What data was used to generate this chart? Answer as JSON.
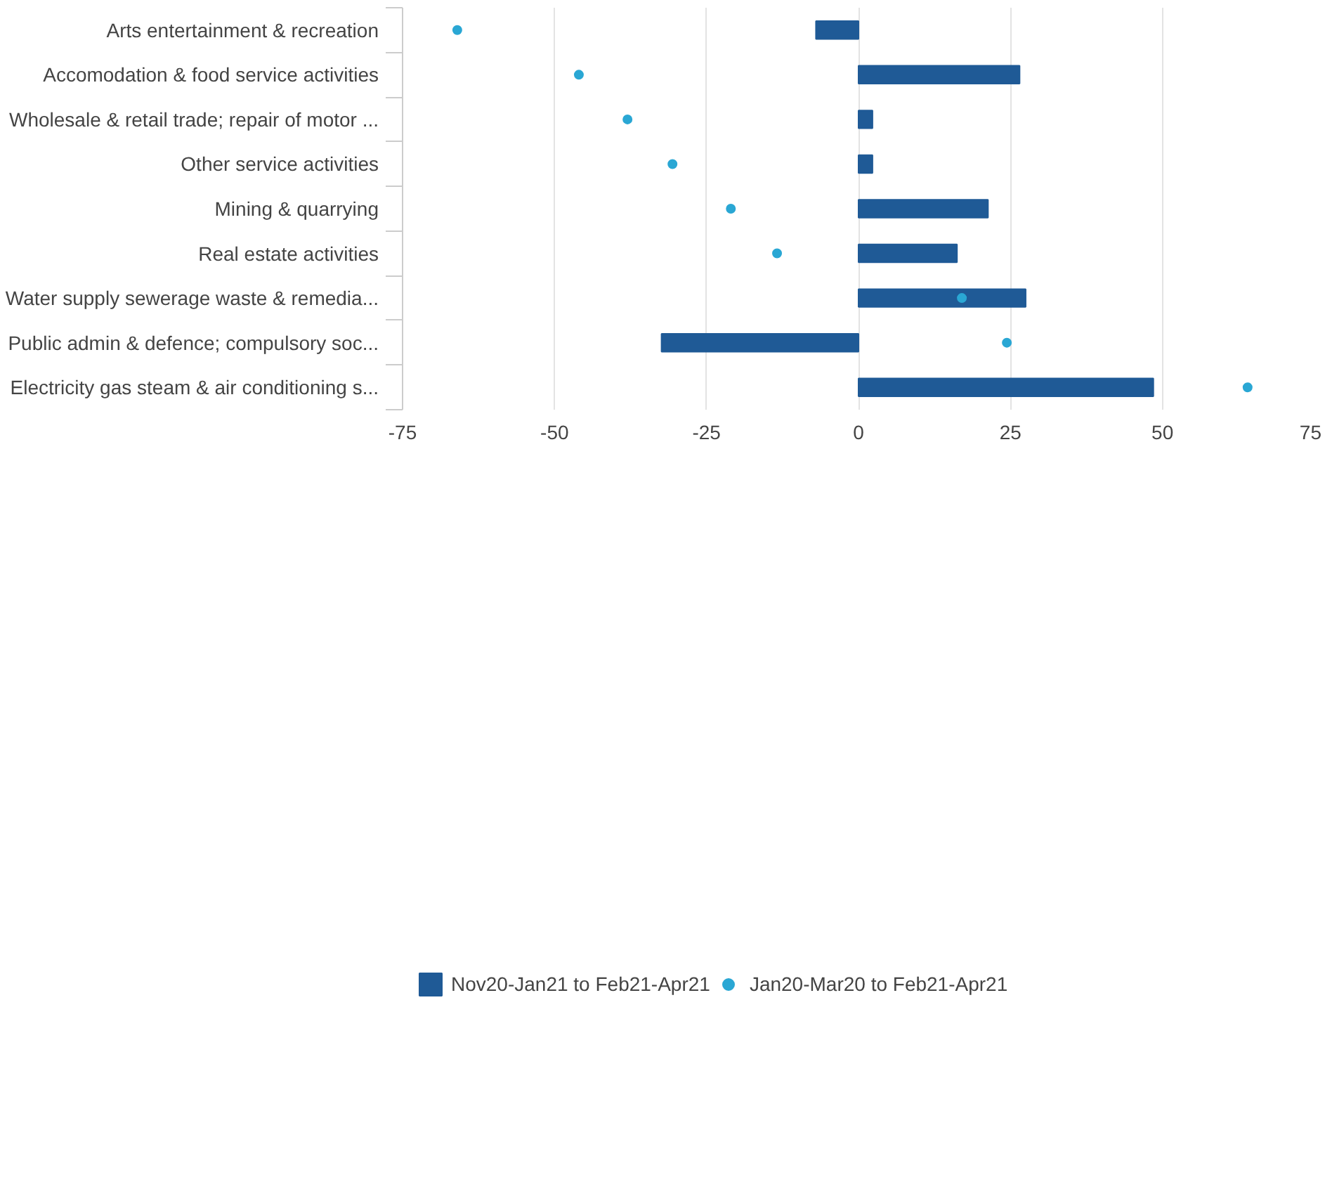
{
  "chart_data": {
    "type": "bar",
    "orientation": "horizontal",
    "categories": [
      "Arts entertainment & recreation",
      "Accomodation & food service activities",
      "Wholesale & retail trade; repair of motor ...",
      "Other service activities",
      "Mining & quarrying",
      "Real estate activities",
      "Water supply sewerage waste & remedia...",
      "Public admin & defence; compulsory soc...",
      "Electricity gas steam & air conditioning s..."
    ],
    "series": [
      {
        "name": "Nov20-Jan21 to Feb21-Apr21",
        "color": "#1f5a96",
        "values": [
          -7,
          26.5,
          2.3,
          2.3,
          21.3,
          16.2,
          27.5,
          -32.4,
          48.5
        ]
      },
      {
        "name": "Jan20-Mar20 to Feb21-Apr21",
        "type": "scatter",
        "color": "#2aa7d4",
        "values": [
          -66,
          -46,
          -38,
          -30.6,
          -21,
          -13.4,
          17,
          24.4,
          64
        ]
      }
    ],
    "xlim": [
      -75,
      75
    ],
    "xticks": [
      -75,
      -50,
      -25,
      0,
      25,
      50,
      75
    ],
    "grid": "x",
    "legend": "bottom left",
    "marker": "circle"
  }
}
